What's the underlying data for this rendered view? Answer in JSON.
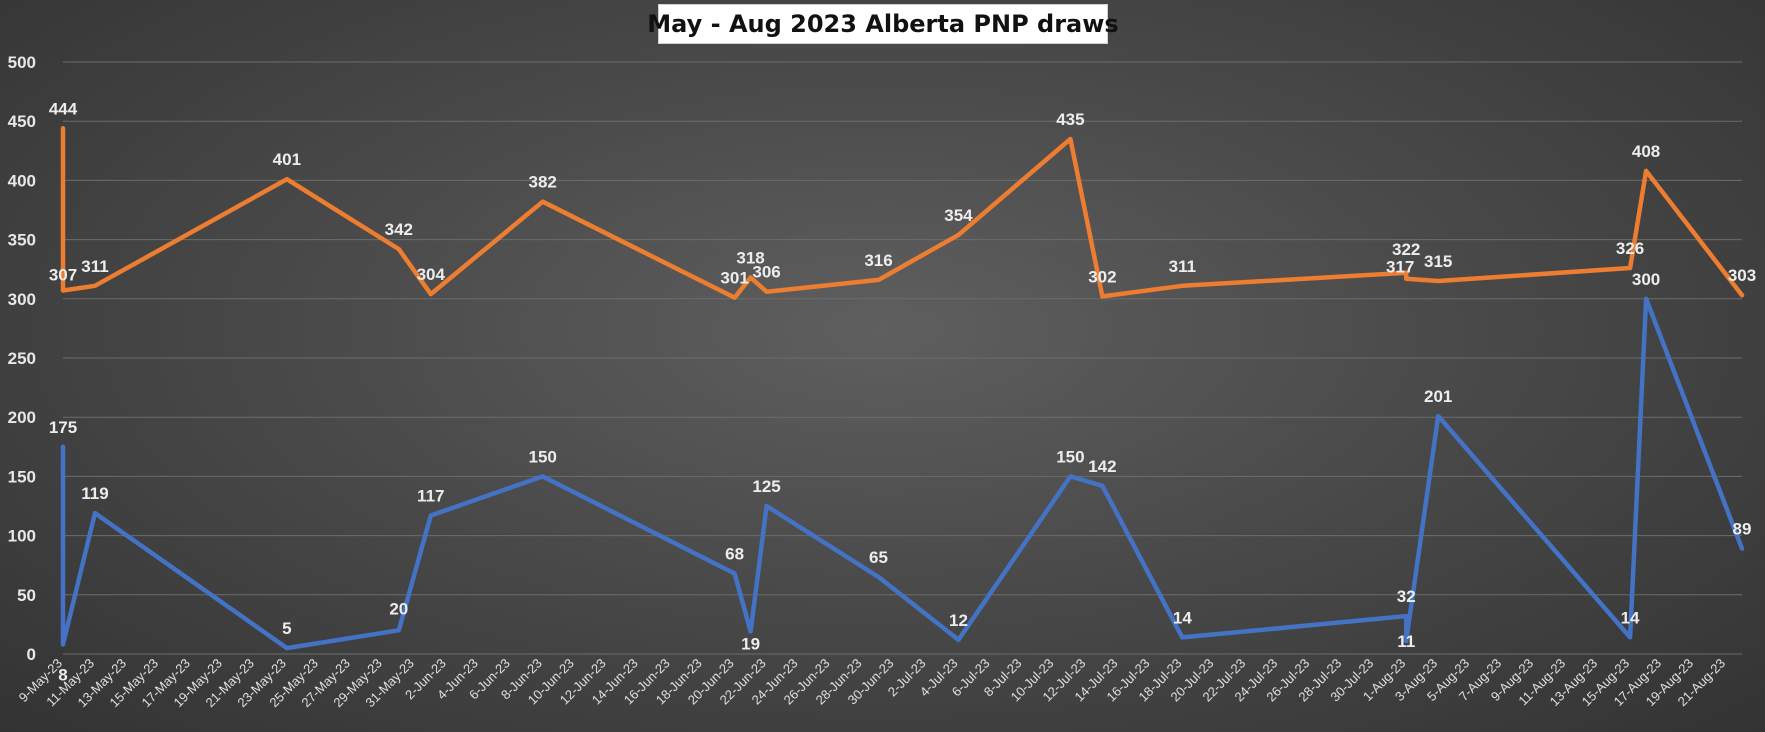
{
  "chart_data": {
    "type": "line",
    "title": "May - Aug 2023 Alberta PNP draws",
    "xlabel": "",
    "ylabel": "",
    "ylim": [
      0,
      500
    ],
    "yticks": [
      0,
      50,
      100,
      150,
      200,
      250,
      300,
      350,
      400,
      450,
      500
    ],
    "grid": true,
    "legend": "none",
    "x_range": [
      "2023-05-09",
      "2023-08-22"
    ],
    "x_tick_labels": [
      "9-May-23",
      "11-May-23",
      "13-May-23",
      "15-May-23",
      "17-May-23",
      "19-May-23",
      "21-May-23",
      "23-May-23",
      "25-May-23",
      "27-May-23",
      "29-May-23",
      "31-May-23",
      "2-Jun-23",
      "4-Jun-23",
      "6-Jun-23",
      "8-Jun-23",
      "10-Jun-23",
      "12-Jun-23",
      "14-Jun-23",
      "16-Jun-23",
      "18-Jun-23",
      "20-Jun-23",
      "22-Jun-23",
      "24-Jun-23",
      "26-Jun-23",
      "28-Jun-23",
      "30-Jun-23",
      "2-Jul-23",
      "4-Jul-23",
      "6-Jul-23",
      "8-Jul-23",
      "10-Jul-23",
      "12-Jul-23",
      "14-Jul-23",
      "16-Jul-23",
      "18-Jul-23",
      "20-Jul-23",
      "22-Jul-23",
      "24-Jul-23",
      "26-Jul-23",
      "28-Jul-23",
      "30-Jul-23",
      "1-Aug-23",
      "3-Aug-23",
      "5-Aug-23",
      "7-Aug-23",
      "9-Aug-23",
      "11-Aug-23",
      "13-Aug-23",
      "15-Aug-23",
      "17-Aug-23",
      "19-Aug-23",
      "21-Aug-23"
    ],
    "series": [
      {
        "color": "#ED7D31",
        "points": [
          {
            "x": "2023-05-09",
            "y": 444
          },
          {
            "x": "2023-05-09",
            "y": 307
          },
          {
            "x": "2023-05-11",
            "y": 311
          },
          {
            "x": "2023-05-23",
            "y": 401
          },
          {
            "x": "2023-05-30",
            "y": 342
          },
          {
            "x": "2023-06-01",
            "y": 304
          },
          {
            "x": "2023-06-08",
            "y": 382
          },
          {
            "x": "2023-06-20",
            "y": 301
          },
          {
            "x": "2023-06-21",
            "y": 318
          },
          {
            "x": "2023-06-22",
            "y": 306
          },
          {
            "x": "2023-06-29",
            "y": 316
          },
          {
            "x": "2023-07-04",
            "y": 354
          },
          {
            "x": "2023-07-11",
            "y": 435
          },
          {
            "x": "2023-07-13",
            "y": 302
          },
          {
            "x": "2023-07-18",
            "y": 311
          },
          {
            "x": "2023-08-01",
            "y": 322
          },
          {
            "x": "2023-08-01",
            "y": 317
          },
          {
            "x": "2023-08-03",
            "y": 315
          },
          {
            "x": "2023-08-15",
            "y": 326
          },
          {
            "x": "2023-08-16",
            "y": 408
          },
          {
            "x": "2023-08-22",
            "y": 303
          }
        ]
      },
      {
        "color": "#4472C4",
        "points": [
          {
            "x": "2023-05-09",
            "y": 175
          },
          {
            "x": "2023-05-09",
            "y": 8
          },
          {
            "x": "2023-05-11",
            "y": 119
          },
          {
            "x": "2023-05-23",
            "y": 5
          },
          {
            "x": "2023-05-30",
            "y": 20
          },
          {
            "x": "2023-06-01",
            "y": 117
          },
          {
            "x": "2023-06-08",
            "y": 150
          },
          {
            "x": "2023-06-20",
            "y": 68
          },
          {
            "x": "2023-06-21",
            "y": 19
          },
          {
            "x": "2023-06-22",
            "y": 125
          },
          {
            "x": "2023-06-29",
            "y": 65
          },
          {
            "x": "2023-07-04",
            "y": 12
          },
          {
            "x": "2023-07-11",
            "y": 150
          },
          {
            "x": "2023-07-13",
            "y": 142
          },
          {
            "x": "2023-07-18",
            "y": 14
          },
          {
            "x": "2023-08-01",
            "y": 32
          },
          {
            "x": "2023-08-01",
            "y": 11
          },
          {
            "x": "2023-08-03",
            "y": 201
          },
          {
            "x": "2023-08-15",
            "y": 14
          },
          {
            "x": "2023-08-16",
            "y": 300
          },
          {
            "x": "2023-08-22",
            "y": 89
          }
        ]
      }
    ]
  }
}
